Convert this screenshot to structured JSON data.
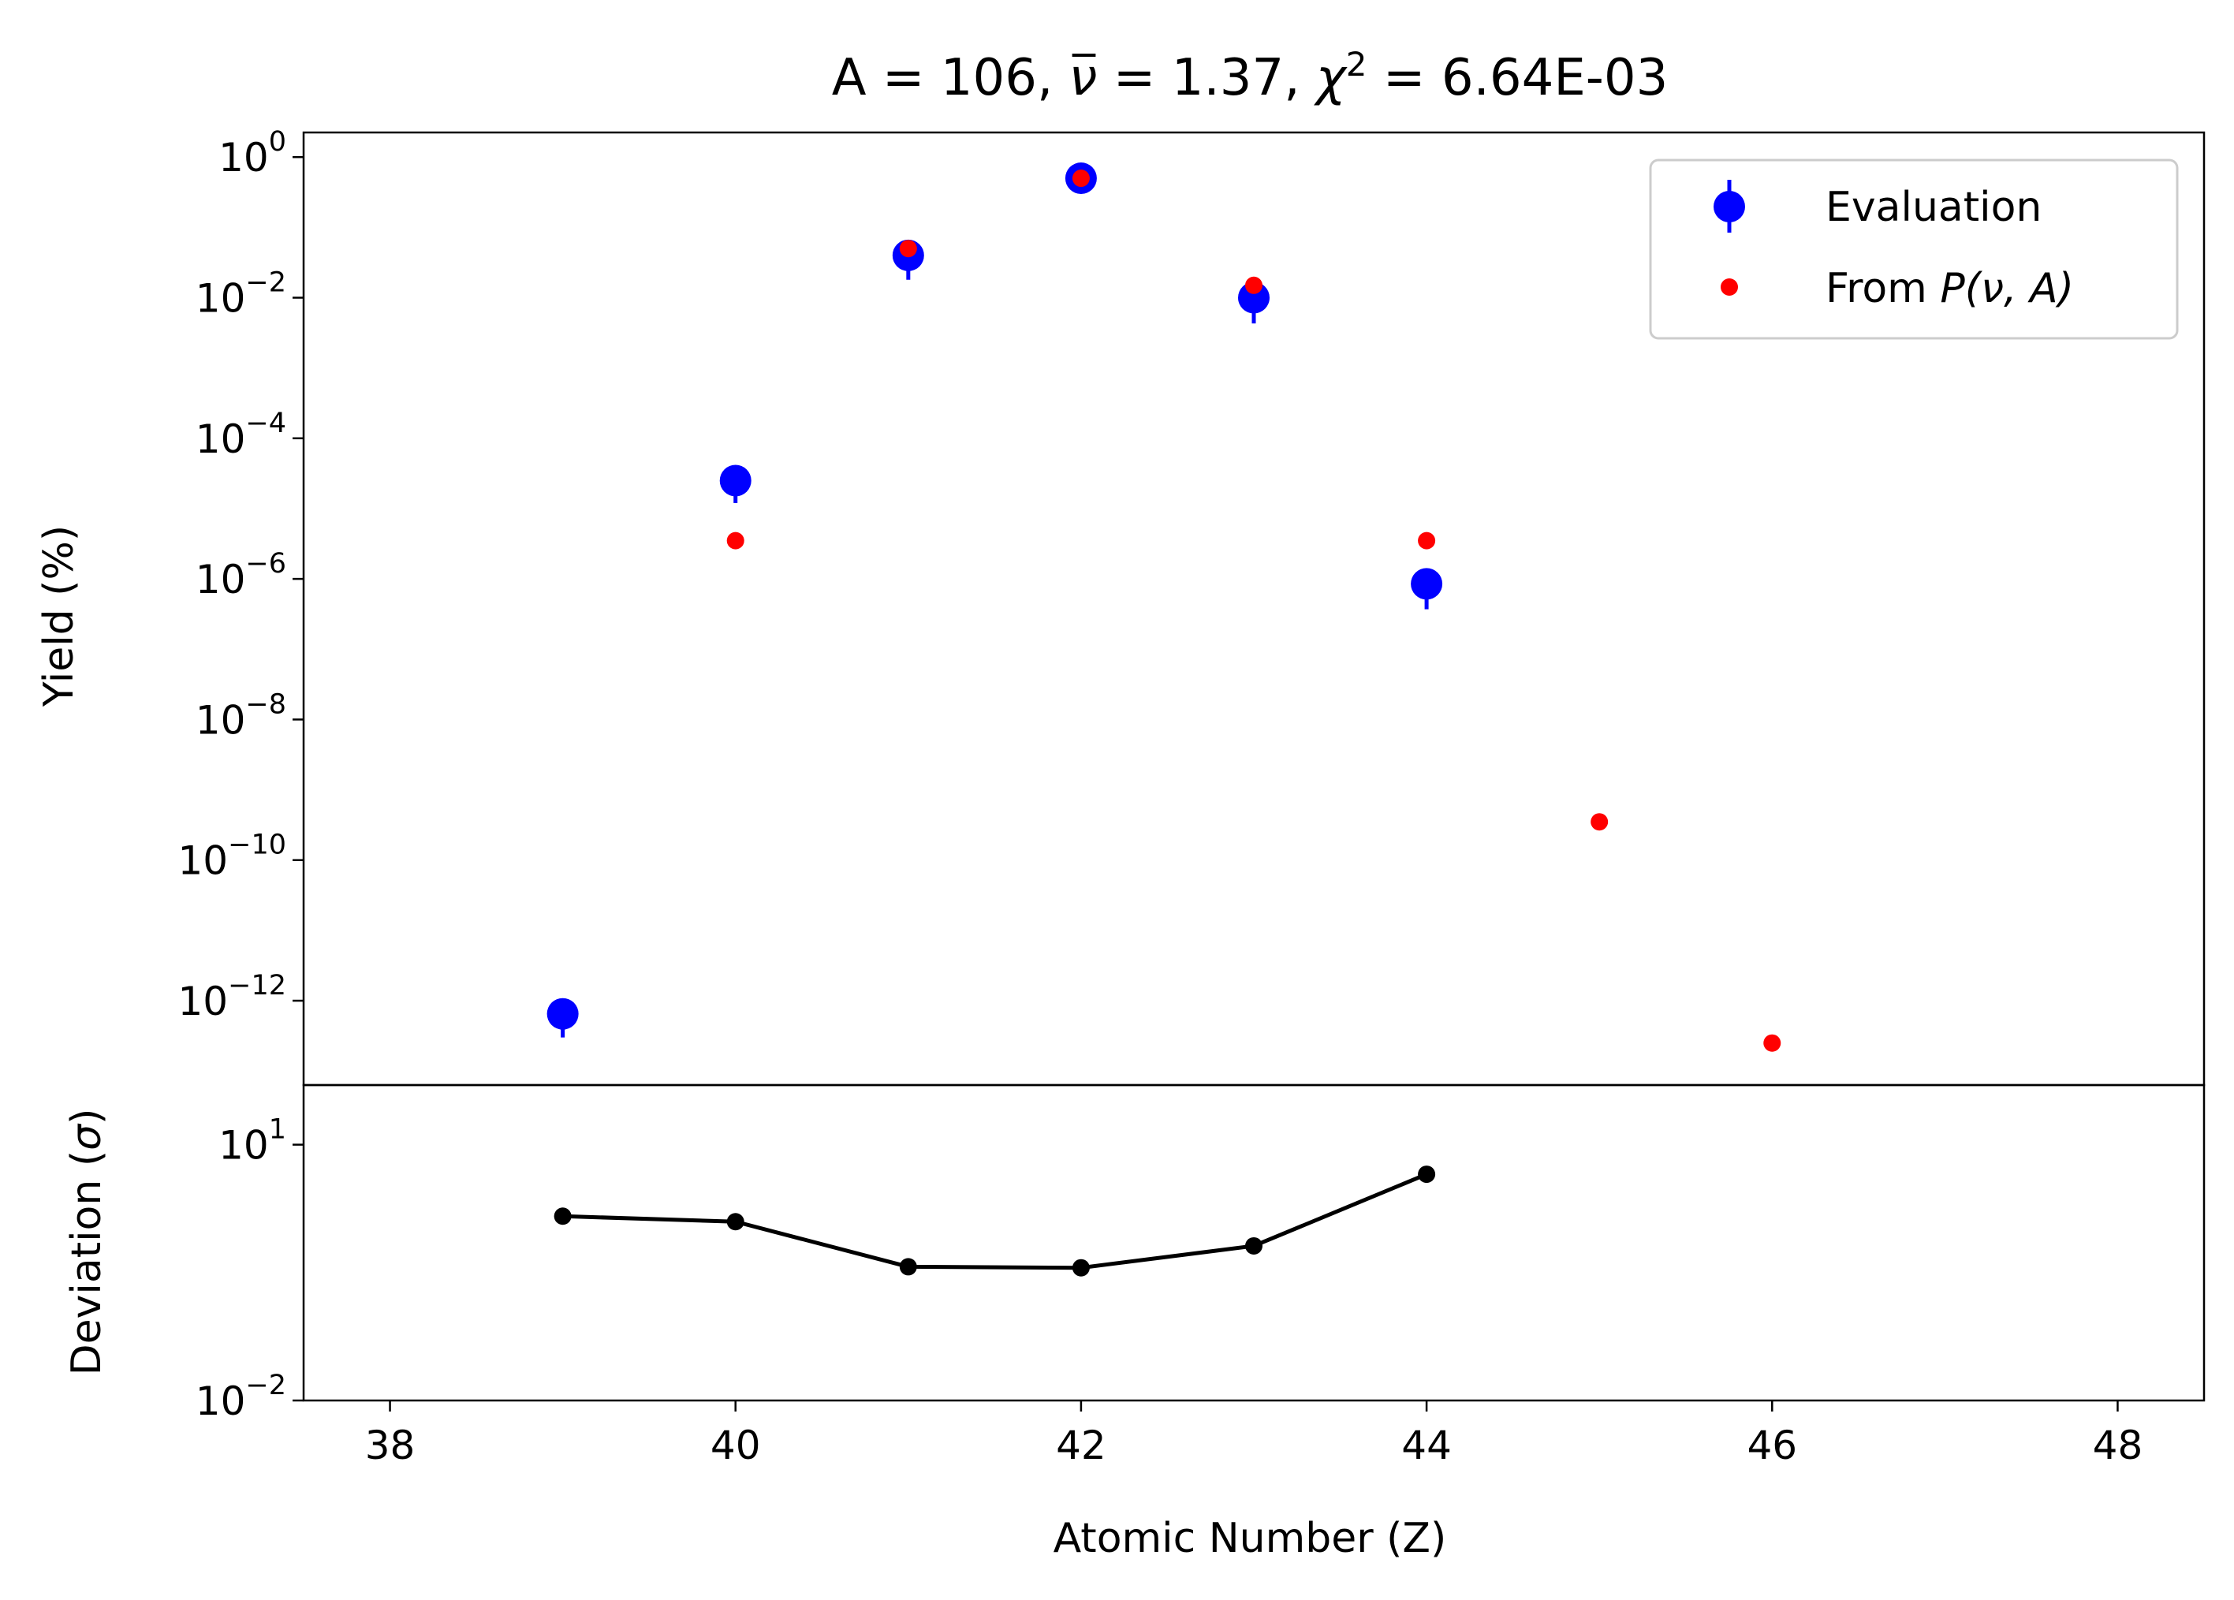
{
  "chart_data": [
    {
      "type": "scatter",
      "title": "A = 106, ν̄ = 1.37, χ² = 6.64E-03",
      "title_parts": {
        "prefix": "A = 106, ",
        "nu": "ν",
        "mid": " = 1.37, ",
        "chi": "χ",
        "chi_exp": "2",
        "suffix": " = 6.64E-03"
      },
      "ylabel": "Yield (%)",
      "xlabel": "",
      "yscale": "log",
      "xlim": [
        37.5,
        48.5
      ],
      "ylim_exp": [
        -13.2,
        0.35
      ],
      "y_ticks_exp": [
        0,
        -2,
        -4,
        -6,
        -8,
        -10,
        -12
      ],
      "legend": {
        "placement": "top-right",
        "entries": [
          {
            "label": "Evaluation",
            "color": "#0000ff"
          },
          {
            "label_prefix": "From ",
            "label_math": "P(ν, A)",
            "color": "#ff0000"
          }
        ]
      },
      "series": [
        {
          "name": "Evaluation",
          "color": "#0000ff",
          "marker": "large-dot-with-errorbar",
          "points": [
            {
              "x": 39,
              "y": 6.5e-13,
              "err_low": 3.5e-13
            },
            {
              "x": 40,
              "y": 2.5e-05,
              "err_low": 1.3e-05
            },
            {
              "x": 41,
              "y": 0.04,
              "err_low": 0.022
            },
            {
              "x": 42,
              "y": 0.5,
              "err_low": 0.15
            },
            {
              "x": 43,
              "y": 0.01,
              "err_low": 0.0057
            },
            {
              "x": 44,
              "y": 8.5e-07,
              "err_low": 4.8e-07
            }
          ]
        },
        {
          "name": "From P(ν, A)",
          "color": "#ff0000",
          "marker": "small-dot",
          "points": [
            {
              "x": 40,
              "y": 3.5e-06
            },
            {
              "x": 41,
              "y": 0.05
            },
            {
              "x": 42,
              "y": 0.5
            },
            {
              "x": 43,
              "y": 0.015
            },
            {
              "x": 44,
              "y": 3.5e-06
            },
            {
              "x": 45,
              "y": 3.5e-10
            },
            {
              "x": 46,
              "y": 2.5e-13
            }
          ]
        }
      ]
    },
    {
      "type": "line",
      "title": "",
      "xlabel": "Atomic Number (Z)",
      "ylabel_prefix": "Deviation (",
      "ylabel_sigma": "σ",
      "ylabel_suffix": ")",
      "yscale": "log",
      "xlim": [
        37.5,
        48.5
      ],
      "ylim": [
        0.01,
        50
      ],
      "x_ticks": [
        38,
        40,
        42,
        44,
        46,
        48
      ],
      "y_ticks_exp": [
        1,
        -2
      ],
      "series": [
        {
          "color": "#000000",
          "marker": "dot",
          "points": [
            {
              "x": 39,
              "y": 1.45
            },
            {
              "x": 40,
              "y": 1.25
            },
            {
              "x": 41,
              "y": 0.37
            },
            {
              "x": 42,
              "y": 0.36
            },
            {
              "x": 43,
              "y": 0.65
            },
            {
              "x": 44,
              "y": 4.5
            }
          ]
        }
      ]
    }
  ]
}
